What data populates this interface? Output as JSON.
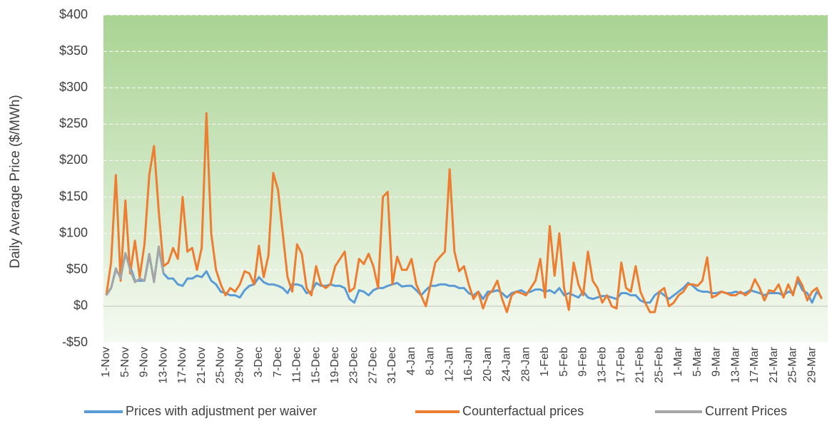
{
  "chart_data": {
    "type": "line",
    "y_label": "Daily Average Price ($/MWh)",
    "ylim": [
      -50,
      400
    ],
    "yticks": [
      {
        "value": -50,
        "label": "-$50"
      },
      {
        "value": 0,
        "label": "$0"
      },
      {
        "value": 50,
        "label": "$50"
      },
      {
        "value": 100,
        "label": "$100"
      },
      {
        "value": 150,
        "label": "$150"
      },
      {
        "value": 200,
        "label": "$200"
      },
      {
        "value": 250,
        "label": "$250"
      },
      {
        "value": 300,
        "label": "$300"
      },
      {
        "value": 350,
        "label": "$350"
      },
      {
        "value": 400,
        "label": "$400"
      }
    ],
    "grid": true,
    "legend": "bottom",
    "categories": [
      "1-Nov",
      null,
      null,
      null,
      "5-Nov",
      null,
      null,
      null,
      "9-Nov",
      null,
      null,
      null,
      "13-Nov",
      null,
      null,
      null,
      "17-Nov",
      null,
      null,
      null,
      "21-Nov",
      null,
      null,
      null,
      "25-Nov",
      null,
      null,
      null,
      "29-Nov",
      null,
      null,
      null,
      "3-Dec",
      null,
      null,
      null,
      "7-Dec",
      null,
      null,
      null,
      "11-Dec",
      null,
      null,
      null,
      "15-Dec",
      null,
      null,
      null,
      "19-Dec",
      null,
      null,
      null,
      "23-Dec",
      null,
      null,
      null,
      "27-Dec",
      null,
      null,
      null,
      "31-Dec",
      null,
      null,
      null,
      "4-Jan",
      null,
      null,
      null,
      "8-Jan",
      null,
      null,
      null,
      "12-Jan",
      null,
      null,
      null,
      "16-Jan",
      null,
      null,
      null,
      "20-Jan",
      null,
      null,
      null,
      "24-Jan",
      null,
      null,
      null,
      "28-Jan",
      null,
      null,
      null,
      "1-Feb",
      null,
      null,
      null,
      "5-Feb",
      null,
      null,
      null,
      "9-Feb",
      null,
      null,
      null,
      "13-Feb",
      null,
      null,
      null,
      "17-Feb",
      null,
      null,
      null,
      "21-Feb",
      null,
      null,
      null,
      "25-Feb",
      null,
      null,
      null,
      "1-Mar",
      null,
      null,
      null,
      "5-Mar",
      null,
      null,
      null,
      "9-Mar",
      null,
      null,
      null,
      "13-Mar",
      null,
      null,
      null,
      "17-Mar",
      null,
      null,
      null,
      "21-Mar",
      null,
      null,
      null,
      "25-Mar",
      null,
      null,
      null,
      "29-Mar",
      null,
      null
    ],
    "series": [
      {
        "name": "Prices with adjustment per waiver",
        "color": "#5b9bd5",
        "values": [
          15,
          25,
          50,
          40,
          72,
          55,
          35,
          35,
          35,
          70,
          35,
          80,
          45,
          38,
          38,
          30,
          28,
          38,
          38,
          42,
          40,
          48,
          35,
          30,
          20,
          18,
          15,
          15,
          12,
          22,
          28,
          30,
          40,
          33,
          30,
          30,
          28,
          25,
          18,
          30,
          30,
          28,
          18,
          20,
          32,
          28,
          28,
          30,
          28,
          28,
          25,
          10,
          5,
          22,
          20,
          15,
          22,
          25,
          25,
          28,
          30,
          32,
          27,
          28,
          28,
          22,
          15,
          22,
          28,
          28,
          30,
          30,
          28,
          28,
          25,
          25,
          18,
          15,
          20,
          10,
          20,
          20,
          22,
          18,
          12,
          18,
          20,
          22,
          18,
          20,
          23,
          23,
          20,
          22,
          18,
          25,
          15,
          18,
          15,
          12,
          20,
          12,
          10,
          12,
          14,
          14,
          12,
          10,
          18,
          18,
          15,
          15,
          8,
          5,
          5,
          15,
          20,
          15,
          10,
          15,
          20,
          25,
          32,
          28,
          22,
          20,
          20,
          18,
          18,
          20,
          18,
          18,
          20,
          18,
          18,
          22,
          20,
          18,
          15,
          18,
          18,
          18,
          15,
          20,
          18,
          35,
          22,
          18,
          5,
          20,
          12
        ]
      },
      {
        "name": "Counterfactual prices",
        "color": "#ed7d31",
        "values": [
          15,
          60,
          180,
          35,
          145,
          45,
          90,
          40,
          85,
          180,
          220,
          130,
          55,
          60,
          80,
          65,
          150,
          75,
          80,
          50,
          80,
          265,
          100,
          50,
          30,
          15,
          25,
          20,
          30,
          48,
          45,
          30,
          83,
          40,
          70,
          183,
          160,
          100,
          40,
          20,
          85,
          72,
          25,
          15,
          55,
          30,
          25,
          30,
          55,
          65,
          75,
          20,
          25,
          65,
          58,
          72,
          55,
          25,
          150,
          157,
          30,
          68,
          50,
          50,
          65,
          30,
          15,
          0,
          30,
          60,
          68,
          75,
          188,
          75,
          48,
          55,
          30,
          10,
          20,
          -3,
          15,
          22,
          35,
          10,
          -8,
          15,
          20,
          18,
          15,
          25,
          35,
          65,
          12,
          110,
          42,
          100,
          25,
          -5,
          60,
          30,
          15,
          75,
          35,
          25,
          5,
          15,
          0,
          -3,
          60,
          25,
          20,
          55,
          20,
          5,
          -8,
          -8,
          20,
          25,
          0,
          5,
          15,
          20,
          30,
          30,
          28,
          35,
          67,
          12,
          15,
          20,
          18,
          15,
          15,
          20,
          15,
          20,
          37,
          25,
          8,
          22,
          20,
          30,
          12,
          30,
          15,
          40,
          28,
          8,
          20,
          25,
          10
        ]
      },
      {
        "name": "Current Prices",
        "color": "#a5a5a5",
        "values": [
          15,
          25,
          52,
          38,
          73,
          50,
          33,
          38,
          35,
          72,
          33,
          82,
          45,
          null,
          null,
          null,
          null,
          null,
          null,
          null,
          null,
          null,
          null,
          null,
          null,
          null,
          null,
          null,
          null,
          null,
          null,
          null,
          null,
          null,
          null,
          null,
          null,
          null,
          null,
          null,
          null,
          null,
          null,
          null,
          null,
          null,
          null,
          null,
          null,
          null,
          null,
          null,
          null,
          null,
          null,
          null,
          null,
          null,
          null,
          null,
          null,
          null,
          null,
          null,
          null,
          null,
          null,
          null,
          null,
          null,
          null,
          null,
          null,
          null,
          null,
          null,
          null,
          null,
          null,
          null,
          null,
          null,
          null,
          null,
          null,
          null,
          null,
          null,
          null,
          null,
          null,
          null,
          null,
          null,
          null,
          null,
          null,
          null,
          null,
          null,
          null,
          null,
          null,
          null,
          null,
          null,
          null,
          null,
          null,
          null,
          null,
          null,
          null,
          null,
          null,
          null,
          null,
          null,
          null,
          null,
          null,
          null,
          null,
          null,
          null,
          null,
          null,
          null,
          null,
          null,
          null,
          null,
          null,
          null,
          null,
          null,
          null,
          null,
          null,
          null,
          null,
          null,
          null,
          null,
          null,
          null,
          null,
          null,
          null,
          null,
          null
        ]
      }
    ]
  }
}
